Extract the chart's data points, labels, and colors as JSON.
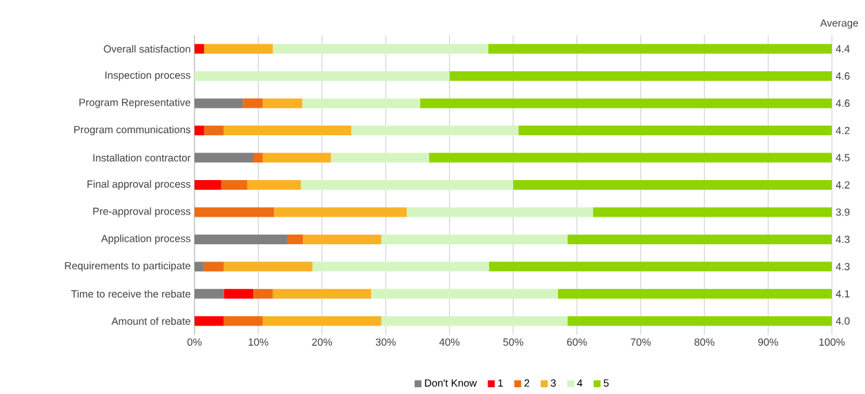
{
  "chart_data": {
    "type": "bar",
    "orientation": "horizontal",
    "stacked": true,
    "categories": [
      "Overall satisfaction",
      "Inspection process",
      "Program Representative",
      "Program communications",
      "Installation contractor",
      "Final approval process",
      "Pre-approval process",
      "Application process",
      "Requirements to participate",
      "Time to receive the rebate",
      "Amount of rebate"
    ],
    "series": [
      {
        "name": "Don't Know",
        "color": "#808080",
        "values": [
          0,
          0,
          7.6,
          0,
          9.2,
          0,
          0,
          14.6,
          1.5,
          4.6,
          0
        ]
      },
      {
        "name": "1",
        "color": "#ff0000",
        "values": [
          1.5,
          0,
          0,
          1.5,
          0,
          4.2,
          0,
          0,
          0,
          4.6,
          4.6
        ]
      },
      {
        "name": "2",
        "color": "#ee6c13",
        "values": [
          0,
          0,
          3.1,
          3.1,
          1.5,
          4.1,
          12.5,
          2.4,
          3.1,
          3.1,
          6.1
        ]
      },
      {
        "name": "3",
        "color": "#f9b225",
        "values": [
          10.8,
          0,
          6.2,
          20.0,
          10.7,
          8.4,
          20.8,
          12.3,
          13.9,
          15.4,
          18.6
        ]
      },
      {
        "name": "4",
        "color": "#d5f5c0",
        "values": [
          33.8,
          40,
          18.5,
          26.2,
          15.4,
          33.3,
          29.2,
          29.2,
          27.7,
          29.3,
          29.2
        ]
      },
      {
        "name": "5",
        "color": "#8fd400",
        "values": [
          53.9,
          60,
          64.6,
          49.2,
          63.2,
          50,
          37.5,
          41.5,
          53.8,
          43,
          41.5
        ]
      }
    ],
    "xlim": [
      0,
      100
    ],
    "xticks": [
      {
        "value": 0,
        "label": "0%"
      },
      {
        "value": 10,
        "label": "10%"
      },
      {
        "value": 20,
        "label": "20%"
      },
      {
        "value": 30,
        "label": "30%"
      },
      {
        "value": 40,
        "label": "40%"
      },
      {
        "value": 50,
        "label": "50%"
      },
      {
        "value": 60,
        "label": "60%"
      },
      {
        "value": 70,
        "label": "70%"
      },
      {
        "value": 80,
        "label": "80%"
      },
      {
        "value": 90,
        "label": "90%"
      },
      {
        "value": 100,
        "label": "100%"
      }
    ],
    "annotations": [
      "Average",
      "4.4",
      "4.6",
      "4.6",
      "4.2",
      "4.5",
      "4.2",
      "3.9",
      "4.3",
      "4.3",
      "4.1",
      "4.0"
    ],
    "grid": "x",
    "legend": "bottom"
  }
}
